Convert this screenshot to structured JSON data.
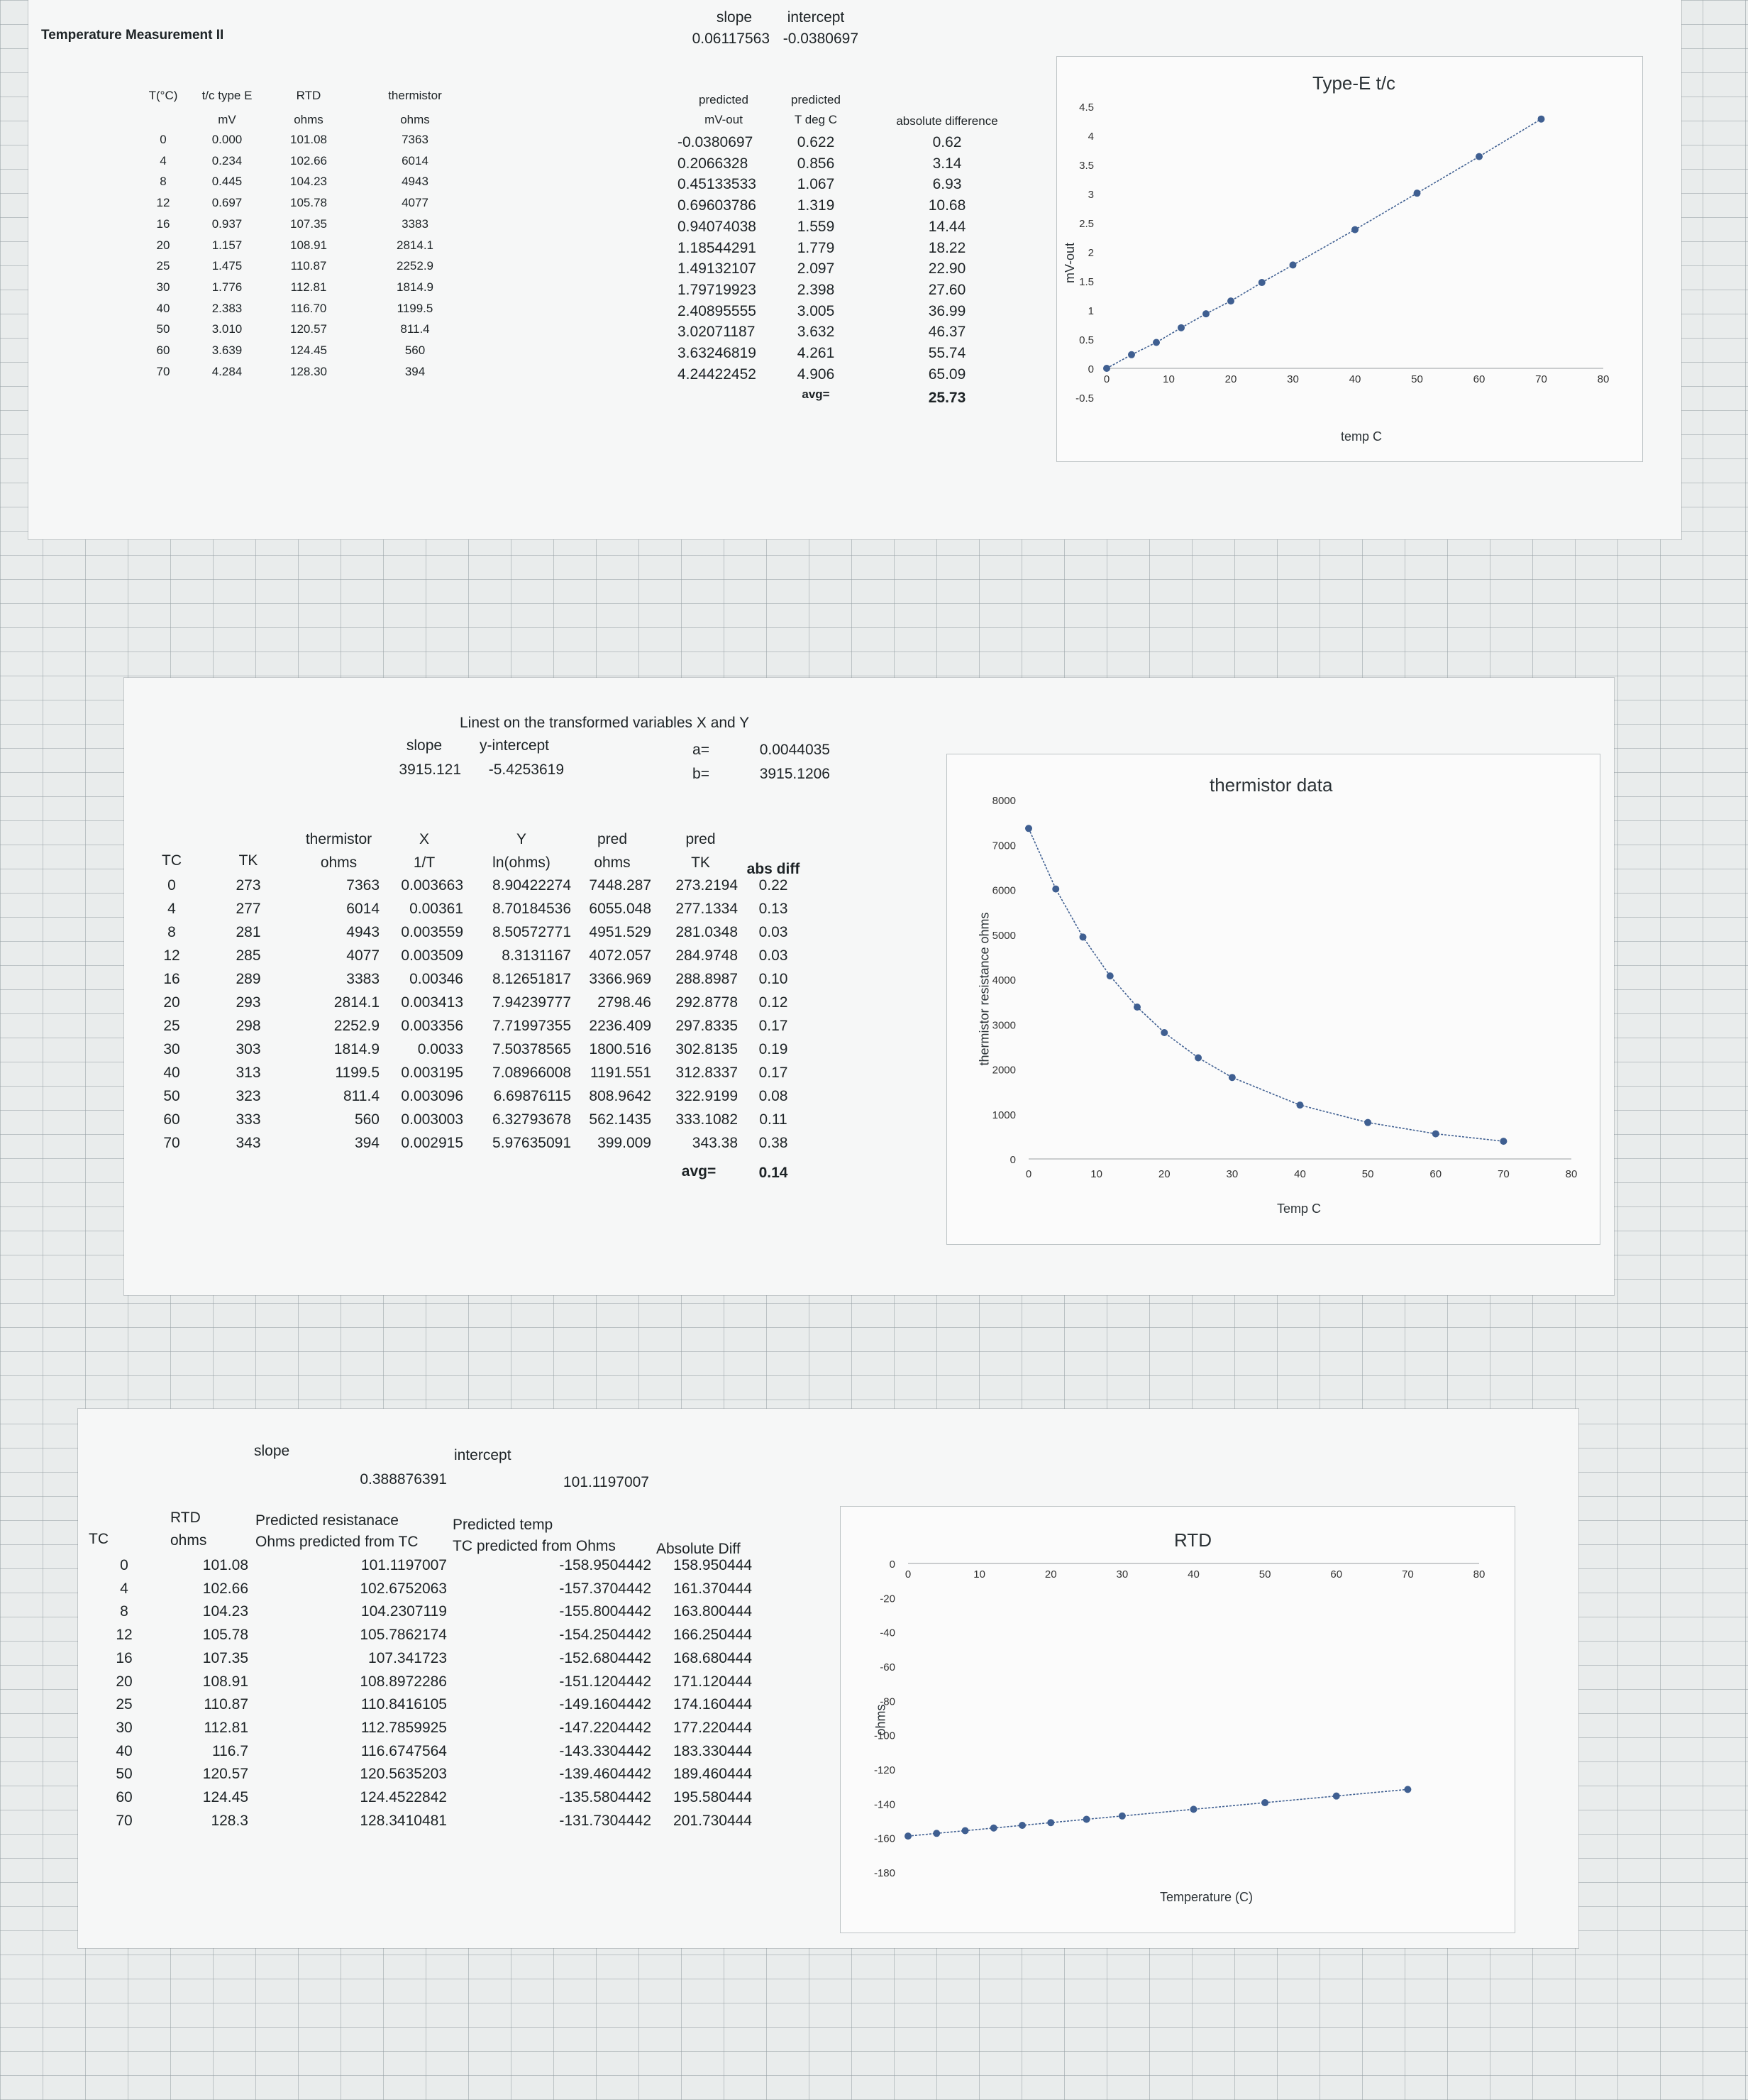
{
  "sheet_title": "Temperature Measurement II",
  "tc_table": {
    "headers": [
      "T(°C)",
      "t/c type E",
      "RTD",
      "thermistor"
    ],
    "units": [
      "",
      "mV",
      "ohms",
      "ohms"
    ],
    "rows": [
      [
        "0",
        "0.000",
        "101.08",
        "7363"
      ],
      [
        "4",
        "0.234",
        "102.66",
        "6014"
      ],
      [
        "8",
        "0.445",
        "104.23",
        "4943"
      ],
      [
        "12",
        "0.697",
        "105.78",
        "4077"
      ],
      [
        "16",
        "0.937",
        "107.35",
        "3383"
      ],
      [
        "20",
        "1.157",
        "108.91",
        "2814.1"
      ],
      [
        "25",
        "1.475",
        "110.87",
        "2252.9"
      ],
      [
        "30",
        "1.776",
        "112.81",
        "1814.9"
      ],
      [
        "40",
        "2.383",
        "116.70",
        "1199.5"
      ],
      [
        "50",
        "3.010",
        "120.57",
        "811.4"
      ],
      [
        "60",
        "3.639",
        "124.45",
        "560"
      ],
      [
        "70",
        "4.284",
        "128.30",
        "394"
      ]
    ]
  },
  "tc_fit": {
    "slope_label": "slope",
    "intercept_label": "intercept",
    "slope": "0.06117563",
    "intercept": "-0.0380697",
    "headers": [
      "predicted",
      "predicted",
      "absolute difference"
    ],
    "subheaders": [
      "mV-out",
      "T deg C"
    ],
    "rows": [
      [
        "-0.0380697",
        "0.622",
        "0.62"
      ],
      [
        "0.2066328",
        "0.856",
        "3.14"
      ],
      [
        "0.45133533",
        "1.067",
        "6.93"
      ],
      [
        "0.69603786",
        "1.319",
        "10.68"
      ],
      [
        "0.94074038",
        "1.559",
        "14.44"
      ],
      [
        "1.18544291",
        "1.779",
        "18.22"
      ],
      [
        "1.49132107",
        "2.097",
        "22.90"
      ],
      [
        "1.79719923",
        "2.398",
        "27.60"
      ],
      [
        "2.40895555",
        "3.005",
        "36.99"
      ],
      [
        "3.02071187",
        "3.632",
        "46.37"
      ],
      [
        "3.63246819",
        "4.261",
        "55.74"
      ],
      [
        "4.24422452",
        "4.906",
        "65.09"
      ]
    ],
    "avg_label": "avg=",
    "avg": "25.73"
  },
  "therm_fit": {
    "title": "Linest on the transformed variables X and Y",
    "slope_label": "slope",
    "yint_label": "y-intercept",
    "slope": "3915.121",
    "yint": "-5.4253619",
    "a_label": "a=",
    "a": "0.0044035",
    "b_label": "b=",
    "b": "3915.1206",
    "headers": [
      "TC",
      "TK",
      "thermistor",
      "X",
      "Y",
      "pred",
      "pred",
      "abs diff"
    ],
    "subheaders": [
      "",
      "",
      "ohms",
      "1/T",
      "ln(ohms)",
      "ohms",
      "TK",
      ""
    ],
    "rows": [
      [
        "0",
        "273",
        "7363",
        "0.003663",
        "8.90422274",
        "7448.287",
        "273.2194",
        "0.22"
      ],
      [
        "4",
        "277",
        "6014",
        "0.00361",
        "8.70184536",
        "6055.048",
        "277.1334",
        "0.13"
      ],
      [
        "8",
        "281",
        "4943",
        "0.003559",
        "8.50572771",
        "4951.529",
        "281.0348",
        "0.03"
      ],
      [
        "12",
        "285",
        "4077",
        "0.003509",
        "8.3131167",
        "4072.057",
        "284.9748",
        "0.03"
      ],
      [
        "16",
        "289",
        "3383",
        "0.00346",
        "8.12651817",
        "3366.969",
        "288.8987",
        "0.10"
      ],
      [
        "20",
        "293",
        "2814.1",
        "0.003413",
        "7.94239777",
        "2798.46",
        "292.8778",
        "0.12"
      ],
      [
        "25",
        "298",
        "2252.9",
        "0.003356",
        "7.71997355",
        "2236.409",
        "297.8335",
        "0.17"
      ],
      [
        "30",
        "303",
        "1814.9",
        "0.0033",
        "7.50378565",
        "1800.516",
        "302.8135",
        "0.19"
      ],
      [
        "40",
        "313",
        "1199.5",
        "0.003195",
        "7.08966008",
        "1191.551",
        "312.8337",
        "0.17"
      ],
      [
        "50",
        "323",
        "811.4",
        "0.003096",
        "6.69876115",
        "808.9642",
        "322.9199",
        "0.08"
      ],
      [
        "60",
        "333",
        "560",
        "0.003003",
        "6.32793678",
        "562.1435",
        "333.1082",
        "0.11"
      ],
      [
        "70",
        "343",
        "394",
        "0.002915",
        "5.97635091",
        "399.009",
        "343.38",
        "0.38"
      ]
    ],
    "avg_label": "avg=",
    "avg": "0.14"
  },
  "rtd_fit": {
    "slope_label": "slope",
    "intercept_label": "intercept",
    "slope": "0.388876391",
    "intercept": "101.1197007",
    "col_tc": "TC",
    "col_rtd": "RTD",
    "col_rtd_unit": "ohms",
    "col_pred_res": "Predicted resistanace",
    "col_pred_res_sub": "Ohms predicted from TC",
    "col_pred_temp": "Predicted temp",
    "col_pred_temp_sub": "TC predicted from Ohms",
    "col_absdiff": "Absolute Diff",
    "rows": [
      [
        "0",
        "101.08",
        "101.1197007",
        "-158.9504442",
        "158.950444"
      ],
      [
        "4",
        "102.66",
        "102.6752063",
        "-157.3704442",
        "161.370444"
      ],
      [
        "8",
        "104.23",
        "104.2307119",
        "-155.8004442",
        "163.800444"
      ],
      [
        "12",
        "105.78",
        "105.7862174",
        "-154.2504442",
        "166.250444"
      ],
      [
        "16",
        "107.35",
        "107.341723",
        "-152.6804442",
        "168.680444"
      ],
      [
        "20",
        "108.91",
        "108.8972286",
        "-151.1204442",
        "171.120444"
      ],
      [
        "25",
        "110.87",
        "110.8416105",
        "-149.1604442",
        "174.160444"
      ],
      [
        "30",
        "112.81",
        "112.7859925",
        "-147.2204442",
        "177.220444"
      ],
      [
        "40",
        "116.7",
        "116.6747564",
        "-143.3304442",
        "183.330444"
      ],
      [
        "50",
        "120.57",
        "120.5635203",
        "-139.4604442",
        "189.460444"
      ],
      [
        "60",
        "124.45",
        "124.4522842",
        "-135.5804442",
        "195.580444"
      ],
      [
        "70",
        "128.3",
        "128.3410481",
        "-131.7304442",
        "201.730444"
      ]
    ]
  },
  "chart_data": [
    {
      "type": "scatter",
      "title": "Type-E t/c",
      "xlabel": "temp C",
      "ylabel": "mV-out",
      "xlim": [
        0,
        80
      ],
      "ylim": [
        -0.5,
        4.5
      ],
      "xticks": [
        "0",
        "10",
        "20",
        "30",
        "40",
        "50",
        "60",
        "70",
        "80"
      ],
      "yticks": [
        "-0.5",
        "0",
        "0.5",
        "1",
        "1.5",
        "2",
        "2.5",
        "3",
        "3.5",
        "4",
        "4.5"
      ],
      "x": [
        0,
        4,
        8,
        12,
        16,
        20,
        25,
        30,
        40,
        50,
        60,
        70
      ],
      "y": [
        0.0,
        0.234,
        0.445,
        0.697,
        0.937,
        1.157,
        1.475,
        1.776,
        2.383,
        3.01,
        3.639,
        4.284
      ],
      "trendline": true,
      "color": "#3f5f91"
    },
    {
      "type": "scatter",
      "title": "thermistor data",
      "xlabel": "Temp C",
      "ylabel": "thermistor resistance ohms",
      "xlim": [
        0,
        80
      ],
      "ylim": [
        0,
        8000
      ],
      "xticks": [
        "0",
        "10",
        "20",
        "30",
        "40",
        "50",
        "60",
        "70",
        "80"
      ],
      "yticks": [
        "0",
        "1000",
        "2000",
        "3000",
        "4000",
        "5000",
        "6000",
        "7000",
        "8000"
      ],
      "x": [
        0,
        4,
        8,
        12,
        16,
        20,
        25,
        30,
        40,
        50,
        60,
        70
      ],
      "y": [
        7363,
        6014,
        4943,
        4077,
        3383,
        2814.1,
        2252.9,
        1814.9,
        1199.5,
        811.4,
        560,
        394
      ],
      "trendline": true,
      "color": "#3f5f91"
    },
    {
      "type": "scatter",
      "title": "RTD",
      "xlabel": "Temperature (C)",
      "ylabel": "ohms",
      "xlim": [
        0,
        80
      ],
      "ylim": [
        -180,
        0
      ],
      "xticks": [
        "0",
        "10",
        "20",
        "30",
        "40",
        "50",
        "60",
        "70",
        "80"
      ],
      "yticks": [
        "0",
        "-20",
        "-40",
        "-60",
        "-80",
        "-100",
        "-120",
        "-140",
        "-160",
        "-180"
      ],
      "x": [
        0,
        4,
        8,
        12,
        16,
        20,
        25,
        30,
        40,
        50,
        60,
        70
      ],
      "y": [
        -158.9504442,
        -157.3704442,
        -155.8004442,
        -154.2504442,
        -152.6804442,
        -151.1204442,
        -149.1604442,
        -147.2204442,
        -143.3304442,
        -139.4604442,
        -135.5804442,
        -131.7304442
      ],
      "trendline": true,
      "color": "#3f5f91"
    }
  ]
}
